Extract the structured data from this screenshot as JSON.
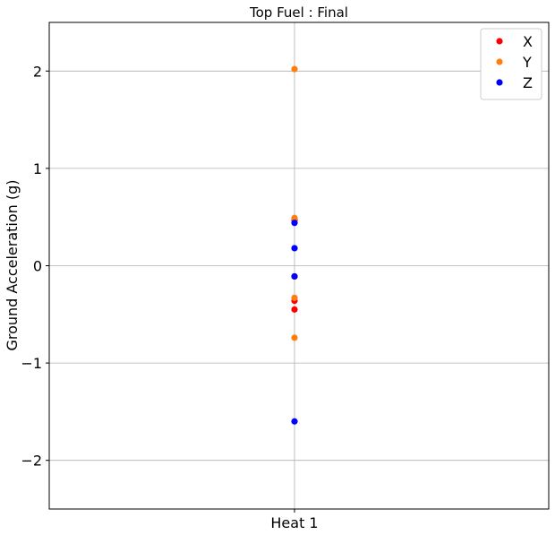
{
  "chart_data": {
    "type": "scatter",
    "title": "Top Fuel : Final",
    "xlabel": "",
    "ylabel": "Ground Acceleration (g)",
    "categories": [
      "Heat 1"
    ],
    "ylim": [
      -2.5,
      2.5
    ],
    "yticks": [
      -2,
      -1,
      0,
      1,
      2
    ],
    "ytick_labels": [
      "−2",
      "−1",
      "0",
      "1",
      "2"
    ],
    "grid": true,
    "legend_position": "top-right",
    "series": [
      {
        "name": "X",
        "color": "#ff0000",
        "points": [
          {
            "x": "Heat 1",
            "y": 0.47
          },
          {
            "x": "Heat 1",
            "y": -0.11
          },
          {
            "x": "Heat 1",
            "y": -0.36
          },
          {
            "x": "Heat 1",
            "y": -0.45
          }
        ]
      },
      {
        "name": "Y",
        "color": "#ff7f0e",
        "points": [
          {
            "x": "Heat 1",
            "y": 2.02
          },
          {
            "x": "Heat 1",
            "y": 0.49
          },
          {
            "x": "Heat 1",
            "y": -0.33
          },
          {
            "x": "Heat 1",
            "y": -0.74
          }
        ]
      },
      {
        "name": "Z",
        "color": "#0000ff",
        "points": [
          {
            "x": "Heat 1",
            "y": 0.44
          },
          {
            "x": "Heat 1",
            "y": 0.18
          },
          {
            "x": "Heat 1",
            "y": -0.11
          },
          {
            "x": "Heat 1",
            "y": -1.6
          }
        ]
      }
    ]
  }
}
